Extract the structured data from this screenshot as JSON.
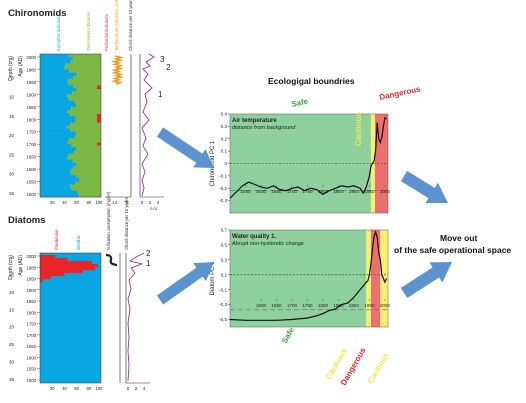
{
  "titles": {
    "chironomids": "Chironomids",
    "diatoms": "Diatoms",
    "center": "Ecologigal boundries",
    "right_line1": "Move out",
    "right_line2": "of the safe operational space"
  },
  "chironomids_panel": {
    "axis_depth": "Depth (cm)",
    "axis_age": "Age (AD)",
    "col_labels": [
      "Eutrophic indicators",
      "Cold-water indicators",
      "Profundal indicators",
      "Temperature indicators (Ave, °C)",
      "Chord distance per 10 years"
    ],
    "col_colors": [
      "#0aa6e2",
      "#7ab843",
      "#e8262a",
      "#f59a23",
      "#8a3b8f"
    ],
    "depth_ticks": [
      "0",
      "5",
      "10",
      "15",
      "20",
      "25",
      "30",
      "35"
    ],
    "age_ticks": [
      "2000",
      "1980",
      "1950",
      "1900",
      "1850",
      "1800",
      "1750",
      "1700",
      "1650",
      "1600",
      "1550",
      "1500"
    ],
    "stack_xticks": [
      "20",
      "40",
      "60",
      "80",
      "100"
    ],
    "temp_xticks": [
      "14",
      "°C"
    ],
    "chord_xticks": [
      "0",
      "2",
      "4"
    ],
    "xunit": "%",
    "chord_xunit": "0.01",
    "peaks": [
      "3",
      "2",
      "1"
    ]
  },
  "diatoms_panel": {
    "axis_depth": "Depth (cm)",
    "axis_age": "Age (AD)",
    "col_labels": [
      "Planktonic",
      "Benthic",
      "N-fixation consumption (mg/m²)",
      "Chord distance per 10 years"
    ],
    "col_colors": [
      "#e8262a",
      "#0aa6e2",
      "#222222",
      "#8a3b8f"
    ],
    "depth_ticks": [
      "0",
      "5",
      "10",
      "15",
      "20",
      "25",
      "30",
      "35"
    ],
    "age_ticks": [
      "2000",
      "1980",
      "1950",
      "1900",
      "1850",
      "1800",
      "1750",
      "1700",
      "1650",
      "1600",
      "1550",
      "1500"
    ],
    "stack_xticks": [
      "20",
      "40",
      "60",
      "80",
      "100"
    ],
    "chord_xticks": [
      "0",
      "2",
      "4"
    ],
    "peaks": [
      "2",
      "1"
    ]
  },
  "zones": {
    "safe": "Safe",
    "cautious": "Cautious",
    "dangerous": "Dangerous",
    "colors": {
      "safe": "#8fd19e",
      "cautious": "#f7f06a",
      "dangerous": "#ee6f6f"
    }
  },
  "arrow_color": "#5b93cf",
  "chart_data": [
    {
      "type": "line",
      "title": "Air temperature",
      "subtitle": "distance from background",
      "ylabel": "Chironomid PC 1",
      "ylim": [
        -0.4,
        0.4
      ],
      "xlim": [
        1500,
        2010
      ],
      "yticks": [
        0.4,
        0.3,
        0.2,
        0.1,
        0.0,
        -0.1,
        -0.2,
        -0.3
      ],
      "ytick_labels": [
        "0.4",
        "0.3",
        "0.2",
        "0.1",
        "0",
        "-0.1",
        "-0.2",
        "-0.3"
      ],
      "xticks": [
        1550,
        1600,
        1650,
        1700,
        1750,
        1800,
        1850,
        1900,
        1950,
        2000
      ],
      "zones": [
        {
          "name": "safe",
          "from": 1500,
          "to": 1955
        },
        {
          "name": "cautious",
          "from": 1955,
          "to": 1968
        },
        {
          "name": "dangerous",
          "from": 1968,
          "to": 2010
        }
      ],
      "dashed_y": [
        0.0,
        -0.22
      ],
      "x": [
        1500,
        1520,
        1540,
        1560,
        1580,
        1600,
        1620,
        1640,
        1660,
        1680,
        1700,
        1720,
        1740,
        1760,
        1780,
        1800,
        1820,
        1840,
        1860,
        1880,
        1900,
        1920,
        1930,
        1940,
        1950,
        1955,
        1960,
        1965,
        1970,
        1975,
        1980,
        1985,
        1990,
        1995,
        2000,
        2005
      ],
      "y": [
        -0.28,
        -0.23,
        -0.18,
        -0.15,
        -0.17,
        -0.19,
        -0.2,
        -0.18,
        -0.21,
        -0.22,
        -0.2,
        -0.19,
        -0.22,
        -0.2,
        -0.21,
        -0.25,
        -0.22,
        -0.2,
        -0.18,
        -0.19,
        -0.18,
        -0.2,
        -0.24,
        -0.19,
        -0.1,
        -0.02,
        0.0,
        0.02,
        0.1,
        0.33,
        0.2,
        0.17,
        0.21,
        0.3,
        0.37,
        0.36
      ]
    },
    {
      "type": "line",
      "title": "Water quality 1.",
      "subtitle": "Abrupt non-hysteretic change",
      "ylabel": "Diatom PC 1",
      "ylim": [
        -0.6,
        0.7
      ],
      "xlim": [
        1500,
        2010
      ],
      "yticks": [
        0.7,
        0.5,
        0.3,
        0.1,
        -0.1,
        -0.3,
        -0.5
      ],
      "ytick_labels": [
        "0,7",
        "0,5",
        "0,3",
        "0,1",
        "-0,1",
        "-0,3",
        "-0,5"
      ],
      "xticks": [
        1600,
        1650,
        1700,
        1750,
        1800,
        1850,
        1900,
        1950,
        2000
      ],
      "zones": [
        {
          "name": "safe",
          "from": 1500,
          "to": 1940
        },
        {
          "name": "cautious",
          "from": 1940,
          "to": 1955
        },
        {
          "name": "dangerous",
          "from": 1955,
          "to": 1985
        },
        {
          "name": "cautious",
          "from": 1985,
          "to": 2010
        }
      ],
      "dashed_y": [
        0.1,
        -0.37
      ],
      "x": [
        1500,
        1550,
        1600,
        1650,
        1700,
        1750,
        1780,
        1800,
        1820,
        1840,
        1860,
        1880,
        1900,
        1920,
        1930,
        1940,
        1945,
        1950,
        1955,
        1960,
        1965,
        1970,
        1975,
        1980,
        1985,
        1990,
        1995,
        2000,
        2005
      ],
      "y": [
        -0.5,
        -0.51,
        -0.51,
        -0.51,
        -0.5,
        -0.48,
        -0.45,
        -0.42,
        -0.38,
        -0.36,
        -0.3,
        -0.28,
        -0.2,
        -0.1,
        -0.05,
        0.0,
        0.02,
        0.1,
        0.25,
        0.45,
        0.62,
        0.67,
        0.6,
        0.4,
        0.3,
        0.1,
        0.05,
        0.0,
        0.05
      ]
    }
  ]
}
